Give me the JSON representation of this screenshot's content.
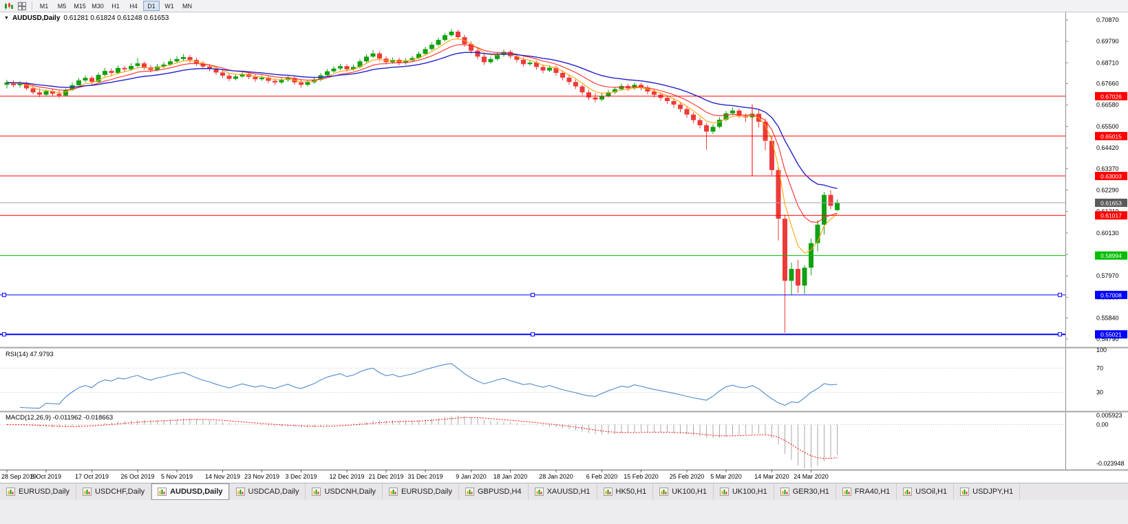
{
  "toolbar": {
    "timeframes": [
      "M1",
      "M5",
      "M15",
      "M30",
      "H1",
      "H4",
      "D1",
      "W1",
      "MN"
    ],
    "active_timeframe": "D1",
    "icons": [
      "candlestick-chart-icon",
      "tile-windows-icon"
    ]
  },
  "chart": {
    "symbol_title": "AUDUSD,Daily",
    "ohlc_text": "0.61281 0.61824 0.61248 0.61653",
    "current_price": {
      "value": 0.61653,
      "label": "0.61653"
    },
    "price_ticks": [
      0.7087,
      0.6979,
      0.6871,
      0.6766,
      0.6658,
      0.655,
      0.6442,
      0.6337,
      0.6229,
      0.6121,
      0.6013,
      0.5905,
      0.5797,
      0.5689,
      0.5584,
      0.5479
    ],
    "hlines": [
      {
        "price": 0.67026,
        "label": "0.67026",
        "color": "#FF0000",
        "width": 1,
        "handles": false
      },
      {
        "price": 0.65015,
        "label": "0.65015",
        "color": "#FF0000",
        "width": 1,
        "handles": false
      },
      {
        "price": 0.63003,
        "label": "0.63003",
        "color": "#FF0000",
        "width": 1,
        "handles": false
      },
      {
        "price": 0.61017,
        "label": "0.61017",
        "color": "#FF0000",
        "width": 1,
        "handles": false
      },
      {
        "price": 0.58994,
        "label": "0.58994",
        "color": "#00BE00",
        "width": 1,
        "handles": false
      },
      {
        "price": 0.57008,
        "label": "0.57008",
        "color": "#0000FF",
        "width": 1,
        "handles": true
      },
      {
        "price": 0.55021,
        "label": "0.55021",
        "color": "#0000FF",
        "width": 2,
        "handles": true
      }
    ],
    "vline": {
      "i": 114,
      "from": 0.666,
      "to": 0.63,
      "color": "#FF2020"
    },
    "dates": [
      {
        "label": "28 Sep 2019",
        "i": 0
      },
      {
        "label": "8 Oct 2019",
        "i": 6
      },
      {
        "label": "17 Oct 2019",
        "i": 13
      },
      {
        "label": "26 Oct 2019",
        "i": 20
      },
      {
        "label": "5 Nov 2019",
        "i": 26
      },
      {
        "label": "14 Nov 2019",
        "i": 33
      },
      {
        "label": "23 Nov 2019",
        "i": 39
      },
      {
        "label": "3 Dec 2019",
        "i": 45
      },
      {
        "label": "12 Dec 2019",
        "i": 52
      },
      {
        "label": "21 Dec 2019",
        "i": 58
      },
      {
        "label": "31 Dec 2019",
        "i": 64
      },
      {
        "label": "9 Jan 2020",
        "i": 71
      },
      {
        "label": "18 Jan 2020",
        "i": 77
      },
      {
        "label": "28 Jan 2020",
        "i": 84
      },
      {
        "label": "6 Feb 2020",
        "i": 91
      },
      {
        "label": "15 Feb 2020",
        "i": 97
      },
      {
        "label": "25 Feb 2020",
        "i": 104
      },
      {
        "label": "5 Mar 2020",
        "i": 110
      },
      {
        "label": "14 Mar 2020",
        "i": 117
      },
      {
        "label": "24 Mar 2020",
        "i": 123
      }
    ]
  },
  "colors": {
    "up": "#12A112",
    "down": "#ED3A3A",
    "ma_fast": "#FFA500",
    "ma_mid": "#FF2A2A",
    "ma_slow": "#2222CC",
    "rsi_line": "#4D89CF",
    "rsi_level": "#C8C8C8",
    "macd_hist": "#A9A9A9",
    "macd_signal": "#FF0000",
    "axis_text": "#000000",
    "current_price_bg": "#5A5A5A",
    "separator": "#A6A4A9",
    "axis_divider": "#8A8A8A"
  },
  "rsi": {
    "label": "RSI(14) 47.9793",
    "period": 14,
    "value": 47.9793,
    "levels": [
      100,
      70,
      30
    ]
  },
  "macd": {
    "label": "MACD(12,26,9) -0.011962 -0.018663",
    "params": [
      12,
      26,
      9
    ],
    "macd_value": -0.011962,
    "signal_value": -0.018663,
    "axis_labels": [
      "0.005923",
      "0.00",
      "-0.023948"
    ]
  },
  "tabs": [
    {
      "label": "EURUSD,Daily",
      "active": false
    },
    {
      "label": "USDCHF,Daily",
      "active": false
    },
    {
      "label": "AUDUSD,Daily",
      "active": true
    },
    {
      "label": "USDCAD,Daily",
      "active": false
    },
    {
      "label": "USDCNH,Daily",
      "active": false
    },
    {
      "label": "EURUSD,Daily",
      "active": false
    },
    {
      "label": "GBPUSD,H4",
      "active": false
    },
    {
      "label": "XAUUSD,H1",
      "active": false
    },
    {
      "label": "HK50,H1",
      "active": false
    },
    {
      "label": "UK100,H1",
      "active": false
    },
    {
      "label": "UK100,H1",
      "active": false
    },
    {
      "label": "GER30,H1",
      "active": false
    },
    {
      "label": "FRA40,H1",
      "active": false
    },
    {
      "label": "USOil,H1",
      "active": false
    },
    {
      "label": "USDJPY,H1",
      "active": false
    }
  ],
  "chart_data": {
    "type": "candlestick",
    "symbol": "AUDUSD",
    "timeframe": "Daily",
    "price_range": {
      "top": 0.7125,
      "bottom": 0.5437
    },
    "indicators": {
      "moving_averages": [
        {
          "type": "ema",
          "period": 5,
          "color_key": "ma_fast"
        },
        {
          "type": "ema",
          "period": 10,
          "color_key": "ma_mid"
        },
        {
          "type": "ema",
          "period": 21,
          "color_key": "ma_slow"
        }
      ],
      "rsi_period": 14,
      "macd_params": [
        12,
        26,
        9
      ]
    },
    "candles": [
      [
        0.676,
        0.6785,
        0.6742,
        0.6772
      ],
      [
        0.6772,
        0.6784,
        0.6748,
        0.6758
      ],
      [
        0.6758,
        0.6778,
        0.6745,
        0.6768
      ],
      [
        0.6768,
        0.6775,
        0.6732,
        0.6742
      ],
      [
        0.6742,
        0.6758,
        0.6712,
        0.6722
      ],
      [
        0.6722,
        0.6742,
        0.6698,
        0.671
      ],
      [
        0.671,
        0.6736,
        0.6702,
        0.6728
      ],
      [
        0.6728,
        0.674,
        0.6704,
        0.6715
      ],
      [
        0.6715,
        0.673,
        0.6692,
        0.6706
      ],
      [
        0.6706,
        0.6742,
        0.67,
        0.6735
      ],
      [
        0.6735,
        0.6772,
        0.6728,
        0.6758
      ],
      [
        0.6758,
        0.6795,
        0.675,
        0.6782
      ],
      [
        0.6782,
        0.6808,
        0.6772,
        0.6795
      ],
      [
        0.6795,
        0.6805,
        0.6762,
        0.6775
      ],
      [
        0.6775,
        0.6822,
        0.6768,
        0.681
      ],
      [
        0.681,
        0.6845,
        0.6802,
        0.683
      ],
      [
        0.683,
        0.6842,
        0.6808,
        0.682
      ],
      [
        0.682,
        0.6858,
        0.6812,
        0.6845
      ],
      [
        0.6845,
        0.6856,
        0.6824,
        0.6838
      ],
      [
        0.6838,
        0.6868,
        0.683,
        0.6855
      ],
      [
        0.6855,
        0.6895,
        0.6848,
        0.6868
      ],
      [
        0.6868,
        0.6878,
        0.6836,
        0.6848
      ],
      [
        0.6848,
        0.686,
        0.6822,
        0.6835
      ],
      [
        0.6835,
        0.6865,
        0.6828,
        0.6852
      ],
      [
        0.6852,
        0.6875,
        0.6844,
        0.6862
      ],
      [
        0.6862,
        0.6892,
        0.6855,
        0.6878
      ],
      [
        0.6878,
        0.6905,
        0.687,
        0.689
      ],
      [
        0.689,
        0.6915,
        0.6882,
        0.69
      ],
      [
        0.69,
        0.691,
        0.6872,
        0.6885
      ],
      [
        0.6885,
        0.6896,
        0.6855,
        0.6868
      ],
      [
        0.6868,
        0.688,
        0.684,
        0.6852
      ],
      [
        0.6852,
        0.6865,
        0.6828,
        0.684
      ],
      [
        0.684,
        0.6852,
        0.681,
        0.6822
      ],
      [
        0.6822,
        0.6835,
        0.6794,
        0.6806
      ],
      [
        0.6806,
        0.6818,
        0.6778,
        0.679
      ],
      [
        0.679,
        0.6815,
        0.6782,
        0.6802
      ],
      [
        0.6802,
        0.6826,
        0.6795,
        0.6814
      ],
      [
        0.6814,
        0.6825,
        0.6788,
        0.68
      ],
      [
        0.68,
        0.6812,
        0.6775,
        0.6788
      ],
      [
        0.6788,
        0.6808,
        0.678,
        0.6796
      ],
      [
        0.6796,
        0.6806,
        0.6768,
        0.678
      ],
      [
        0.678,
        0.6792,
        0.6758,
        0.6772
      ],
      [
        0.6772,
        0.6796,
        0.6764,
        0.6784
      ],
      [
        0.6784,
        0.6806,
        0.6776,
        0.6794
      ],
      [
        0.6794,
        0.6804,
        0.676,
        0.6772
      ],
      [
        0.6772,
        0.6784,
        0.6746,
        0.676
      ],
      [
        0.676,
        0.6785,
        0.6752,
        0.6773
      ],
      [
        0.6773,
        0.6798,
        0.6765,
        0.6786
      ],
      [
        0.6786,
        0.682,
        0.6778,
        0.6808
      ],
      [
        0.6808,
        0.684,
        0.68,
        0.6828
      ],
      [
        0.6828,
        0.6854,
        0.682,
        0.6842
      ],
      [
        0.6842,
        0.6866,
        0.6834,
        0.6854
      ],
      [
        0.6854,
        0.6864,
        0.6825,
        0.6838
      ],
      [
        0.6838,
        0.6862,
        0.683,
        0.685
      ],
      [
        0.685,
        0.689,
        0.6842,
        0.6878
      ],
      [
        0.6878,
        0.6914,
        0.687,
        0.6902
      ],
      [
        0.6902,
        0.6935,
        0.6895,
        0.6918
      ],
      [
        0.6918,
        0.6928,
        0.688,
        0.6892
      ],
      [
        0.6892,
        0.6904,
        0.6862,
        0.6874
      ],
      [
        0.6874,
        0.6898,
        0.6866,
        0.6886
      ],
      [
        0.6886,
        0.6896,
        0.6858,
        0.687
      ],
      [
        0.687,
        0.6894,
        0.6862,
        0.6882
      ],
      [
        0.6882,
        0.6906,
        0.6874,
        0.6895
      ],
      [
        0.6895,
        0.6928,
        0.6888,
        0.6916
      ],
      [
        0.6916,
        0.6952,
        0.6908,
        0.694
      ],
      [
        0.694,
        0.6974,
        0.6932,
        0.6962
      ],
      [
        0.6962,
        0.6998,
        0.6954,
        0.6986
      ],
      [
        0.6986,
        0.7022,
        0.6978,
        0.701
      ],
      [
        0.701,
        0.7042,
        0.7002,
        0.7028
      ],
      [
        0.7028,
        0.7038,
        0.6988,
        0.7
      ],
      [
        0.7,
        0.7012,
        0.6952,
        0.6966
      ],
      [
        0.6966,
        0.6978,
        0.6918,
        0.6932
      ],
      [
        0.6932,
        0.6944,
        0.6888,
        0.6902
      ],
      [
        0.6902,
        0.6915,
        0.686,
        0.6874
      ],
      [
        0.6874,
        0.6902,
        0.6866,
        0.689
      ],
      [
        0.689,
        0.6922,
        0.6882,
        0.691
      ],
      [
        0.691,
        0.6938,
        0.6902,
        0.6926
      ],
      [
        0.6926,
        0.6936,
        0.6892,
        0.6904
      ],
      [
        0.6904,
        0.6916,
        0.6872,
        0.6886
      ],
      [
        0.6886,
        0.6898,
        0.685,
        0.6864
      ],
      [
        0.6864,
        0.6886,
        0.6856,
        0.6872
      ],
      [
        0.6872,
        0.6882,
        0.6836,
        0.685
      ],
      [
        0.685,
        0.6862,
        0.6818,
        0.6832
      ],
      [
        0.6832,
        0.6858,
        0.6824,
        0.6846
      ],
      [
        0.6846,
        0.6856,
        0.6806,
        0.682
      ],
      [
        0.682,
        0.6832,
        0.6782,
        0.6796
      ],
      [
        0.6796,
        0.6808,
        0.676,
        0.6774
      ],
      [
        0.6774,
        0.6786,
        0.6738,
        0.6752
      ],
      [
        0.6752,
        0.6762,
        0.6708,
        0.6722
      ],
      [
        0.6722,
        0.6734,
        0.6682,
        0.6696
      ],
      [
        0.6696,
        0.6718,
        0.6672,
        0.6686
      ],
      [
        0.6686,
        0.6716,
        0.6678,
        0.6704
      ],
      [
        0.6704,
        0.6734,
        0.6696,
        0.6722
      ],
      [
        0.6722,
        0.675,
        0.6714,
        0.6738
      ],
      [
        0.6738,
        0.6766,
        0.673,
        0.6754
      ],
      [
        0.6754,
        0.6764,
        0.6728,
        0.6742
      ],
      [
        0.6742,
        0.6772,
        0.6734,
        0.676
      ],
      [
        0.676,
        0.677,
        0.6732,
        0.6746
      ],
      [
        0.6746,
        0.6758,
        0.6712,
        0.6726
      ],
      [
        0.6726,
        0.6738,
        0.6696,
        0.671
      ],
      [
        0.671,
        0.6722,
        0.668,
        0.6694
      ],
      [
        0.6694,
        0.6706,
        0.6664,
        0.6678
      ],
      [
        0.6678,
        0.669,
        0.6644,
        0.666
      ],
      [
        0.666,
        0.6672,
        0.6622,
        0.6638
      ],
      [
        0.6638,
        0.665,
        0.6594,
        0.661
      ],
      [
        0.661,
        0.6622,
        0.6566,
        0.6582
      ],
      [
        0.6582,
        0.6595,
        0.654,
        0.6556
      ],
      [
        0.6556,
        0.6568,
        0.6434,
        0.6524
      ],
      [
        0.6524,
        0.656,
        0.6512,
        0.6548
      ],
      [
        0.6548,
        0.6596,
        0.654,
        0.6584
      ],
      [
        0.6584,
        0.6628,
        0.6576,
        0.6616
      ],
      [
        0.6616,
        0.6645,
        0.6608,
        0.663
      ],
      [
        0.663,
        0.664,
        0.6592,
        0.6604
      ],
      [
        0.6604,
        0.6616,
        0.6572,
        0.6596
      ],
      [
        0.6596,
        0.666,
        0.658,
        0.6614
      ],
      [
        0.6614,
        0.6635,
        0.6545,
        0.6574
      ],
      [
        0.6574,
        0.659,
        0.643,
        0.6478
      ],
      [
        0.6478,
        0.65,
        0.6305,
        0.633
      ],
      [
        0.633,
        0.6345,
        0.5975,
        0.6085
      ],
      [
        0.6085,
        0.6105,
        0.551,
        0.5772
      ],
      [
        0.5772,
        0.5865,
        0.5702,
        0.5832
      ],
      [
        0.5832,
        0.5878,
        0.571,
        0.5748
      ],
      [
        0.5748,
        0.585,
        0.5705,
        0.5838
      ],
      [
        0.5838,
        0.5985,
        0.58,
        0.5962
      ],
      [
        0.5962,
        0.6078,
        0.592,
        0.6055
      ],
      [
        0.6055,
        0.622,
        0.6005,
        0.6205
      ],
      [
        0.6205,
        0.6228,
        0.6132,
        0.615
      ],
      [
        0.61281,
        0.61824,
        0.61248,
        0.61653
      ]
    ]
  }
}
